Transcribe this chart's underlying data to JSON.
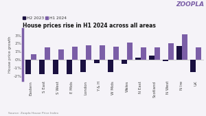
{
  "title": "House prices rise in H1 2024 across all areas",
  "zoopla_label": "ZOOPLA",
  "source": "Source: Zoopla House Price Index",
  "categories": [
    "Eastern",
    "S East",
    "S West",
    "E Mids",
    "London",
    "Y & H",
    "W Mids",
    "Wales",
    "N East",
    "Scotland",
    "N West",
    "N Ire",
    "UK"
  ],
  "h2_2023": [
    -1.8,
    -1.8,
    -1.8,
    -1.8,
    -1.5,
    -0.4,
    -1.5,
    -0.5,
    0.25,
    0.5,
    -0.15,
    1.7,
    -1.5
  ],
  "h1_2024": [
    0.7,
    1.55,
    1.25,
    1.65,
    1.75,
    1.75,
    1.65,
    2.15,
    1.55,
    1.55,
    2.05,
    3.15,
    1.55
  ],
  "color_h2": "#1a1040",
  "color_h1": "#7b5ea7",
  "background": "#f5f3f8",
  "ylim_min": -2.5,
  "ylim_max": 3.8,
  "yticks": [
    -2,
    -1,
    0,
    1,
    2,
    3
  ],
  "ytick_labels": [
    "-2%",
    "-1%",
    "0%",
    "1%",
    "2%",
    "3%"
  ]
}
